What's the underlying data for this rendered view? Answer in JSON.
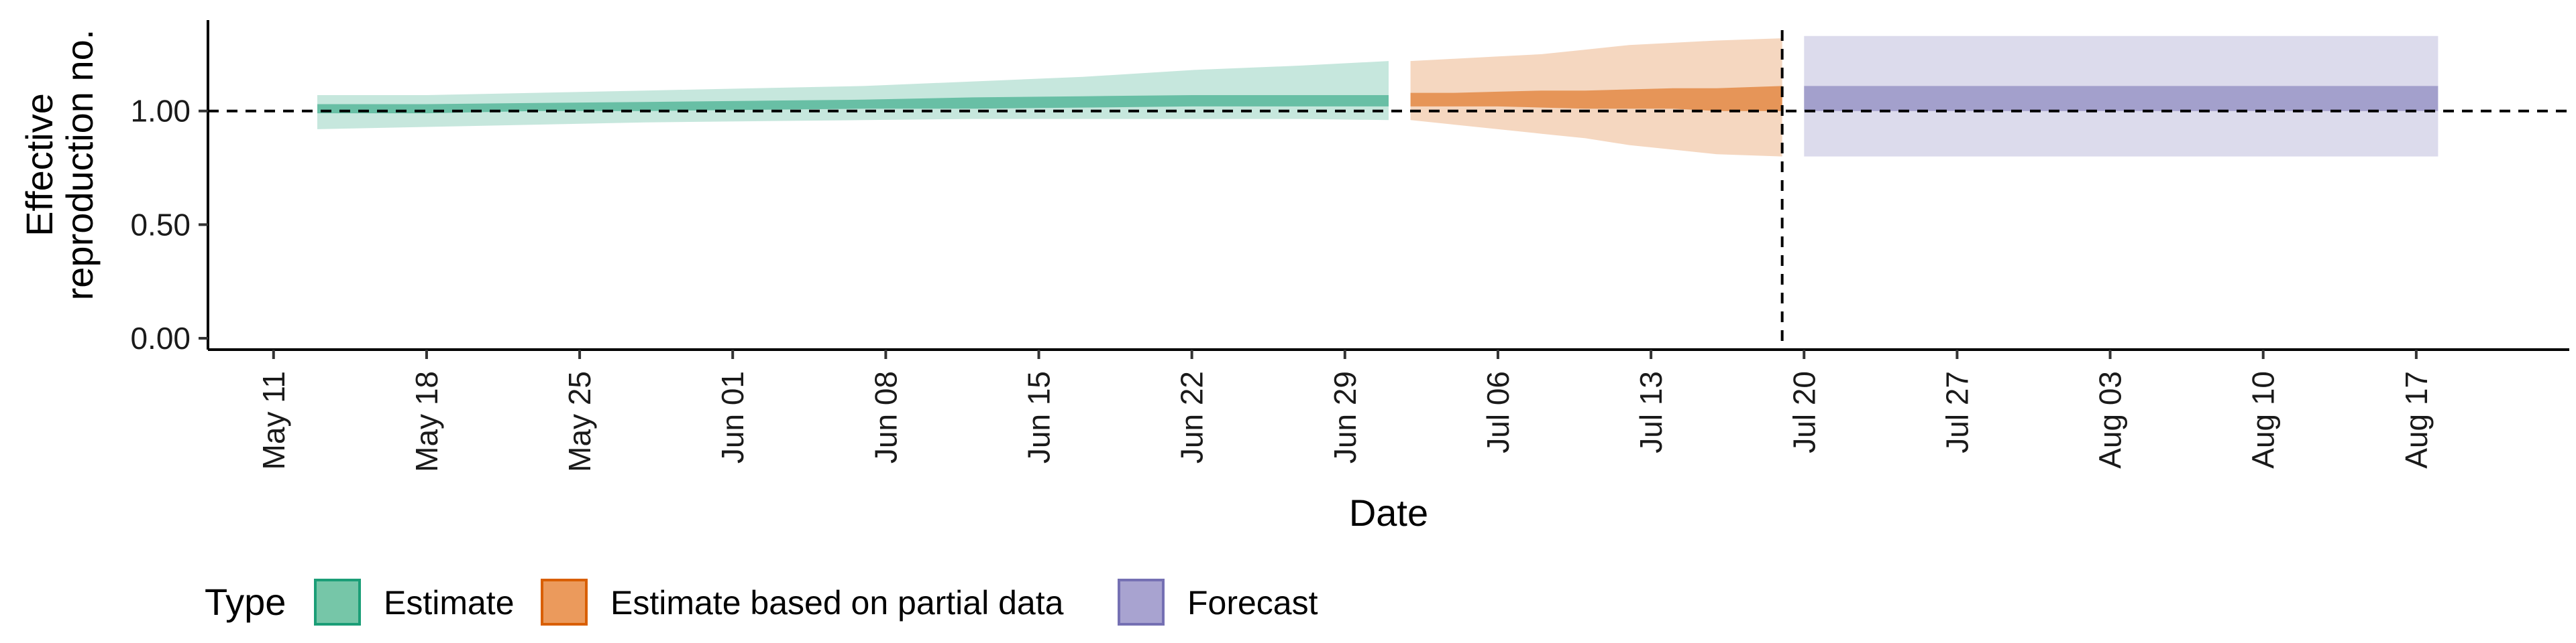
{
  "chart_data": {
    "type": "area",
    "xlabel": "Date",
    "ylabel": [
      "Effective",
      "reproduction no."
    ],
    "x_axis": {
      "type": "date",
      "range": [
        "2020-05-08",
        "2020-08-24"
      ],
      "ticks": [
        "2020-05-11",
        "2020-05-18",
        "2020-05-25",
        "2020-06-01",
        "2020-06-08",
        "2020-06-15",
        "2020-06-22",
        "2020-06-29",
        "2020-07-06",
        "2020-07-13",
        "2020-07-20",
        "2020-07-27",
        "2020-08-03",
        "2020-08-10",
        "2020-08-17"
      ],
      "tick_labels": [
        "May 11",
        "May 18",
        "May 25",
        "Jun 01",
        "Jun 08",
        "Jun 15",
        "Jun 22",
        "Jun 29",
        "Jul 06",
        "Jul 13",
        "Jul 20",
        "Jul 27",
        "Aug 03",
        "Aug 10",
        "Aug 17"
      ]
    },
    "y_axis": {
      "range": [
        -0.05,
        1.4
      ],
      "ticks": [
        0,
        0.5,
        1.0
      ],
      "tick_labels": [
        "0.00",
        "0.50",
        "1.00"
      ]
    },
    "reference_lines": {
      "horizontal_y": 1.0,
      "vertical_x": "2020-07-19",
      "style": "dashed"
    },
    "legend": {
      "title": "Type",
      "position": "bottom",
      "entries": [
        {
          "label": "Estimate",
          "fill": "#76c6a8",
          "stroke": "#1b9e77"
        },
        {
          "label": "Estimate based on partial data",
          "fill": "#eb9a5c",
          "stroke": "#d95f02"
        },
        {
          "label": "Forecast",
          "fill": "#a8a3d0",
          "stroke": "#7570b3"
        }
      ]
    },
    "series": [
      {
        "name": "Estimate",
        "color": "#1b9e77",
        "x": [
          "2020-05-13",
          "2020-05-18",
          "2020-05-23",
          "2020-05-28",
          "2020-06-02",
          "2020-06-07",
          "2020-06-12",
          "2020-06-17",
          "2020-06-22",
          "2020-06-27",
          "2020-07-01"
        ],
        "lower_90": [
          0.92,
          0.93,
          0.94,
          0.95,
          0.955,
          0.96,
          0.965,
          0.965,
          0.965,
          0.965,
          0.96
        ],
        "upper_90": [
          1.07,
          1.07,
          1.08,
          1.09,
          1.1,
          1.11,
          1.13,
          1.15,
          1.18,
          1.2,
          1.22
        ],
        "lower_50": [
          0.99,
          0.99,
          1.0,
          1.0,
          1.005,
          1.01,
          1.01,
          1.015,
          1.02,
          1.02,
          1.02
        ],
        "upper_50": [
          1.03,
          1.03,
          1.035,
          1.04,
          1.045,
          1.05,
          1.06,
          1.065,
          1.07,
          1.07,
          1.07
        ]
      },
      {
        "name": "Estimate based on partial data",
        "color": "#d95f02",
        "x": [
          "2020-07-02",
          "2020-07-04",
          "2020-07-06",
          "2020-07-08",
          "2020-07-10",
          "2020-07-12",
          "2020-07-14",
          "2020-07-16",
          "2020-07-19"
        ],
        "lower_90": [
          0.96,
          0.94,
          0.92,
          0.9,
          0.88,
          0.85,
          0.83,
          0.81,
          0.8
        ],
        "upper_90": [
          1.22,
          1.23,
          1.24,
          1.25,
          1.27,
          1.29,
          1.3,
          1.31,
          1.32
        ],
        "lower_50": [
          1.02,
          1.02,
          1.02,
          1.015,
          1.01,
          1.01,
          1.01,
          1.0,
          1.0
        ],
        "upper_50": [
          1.08,
          1.08,
          1.085,
          1.09,
          1.09,
          1.095,
          1.1,
          1.1,
          1.11
        ]
      },
      {
        "name": "Forecast",
        "color": "#7570b3",
        "x": [
          "2020-07-20",
          "2020-08-18"
        ],
        "lower_90": [
          0.8,
          0.8
        ],
        "upper_90": [
          1.33,
          1.33
        ],
        "lower_50": [
          1.0,
          1.0
        ],
        "upper_50": [
          1.11,
          1.11
        ]
      }
    ]
  }
}
